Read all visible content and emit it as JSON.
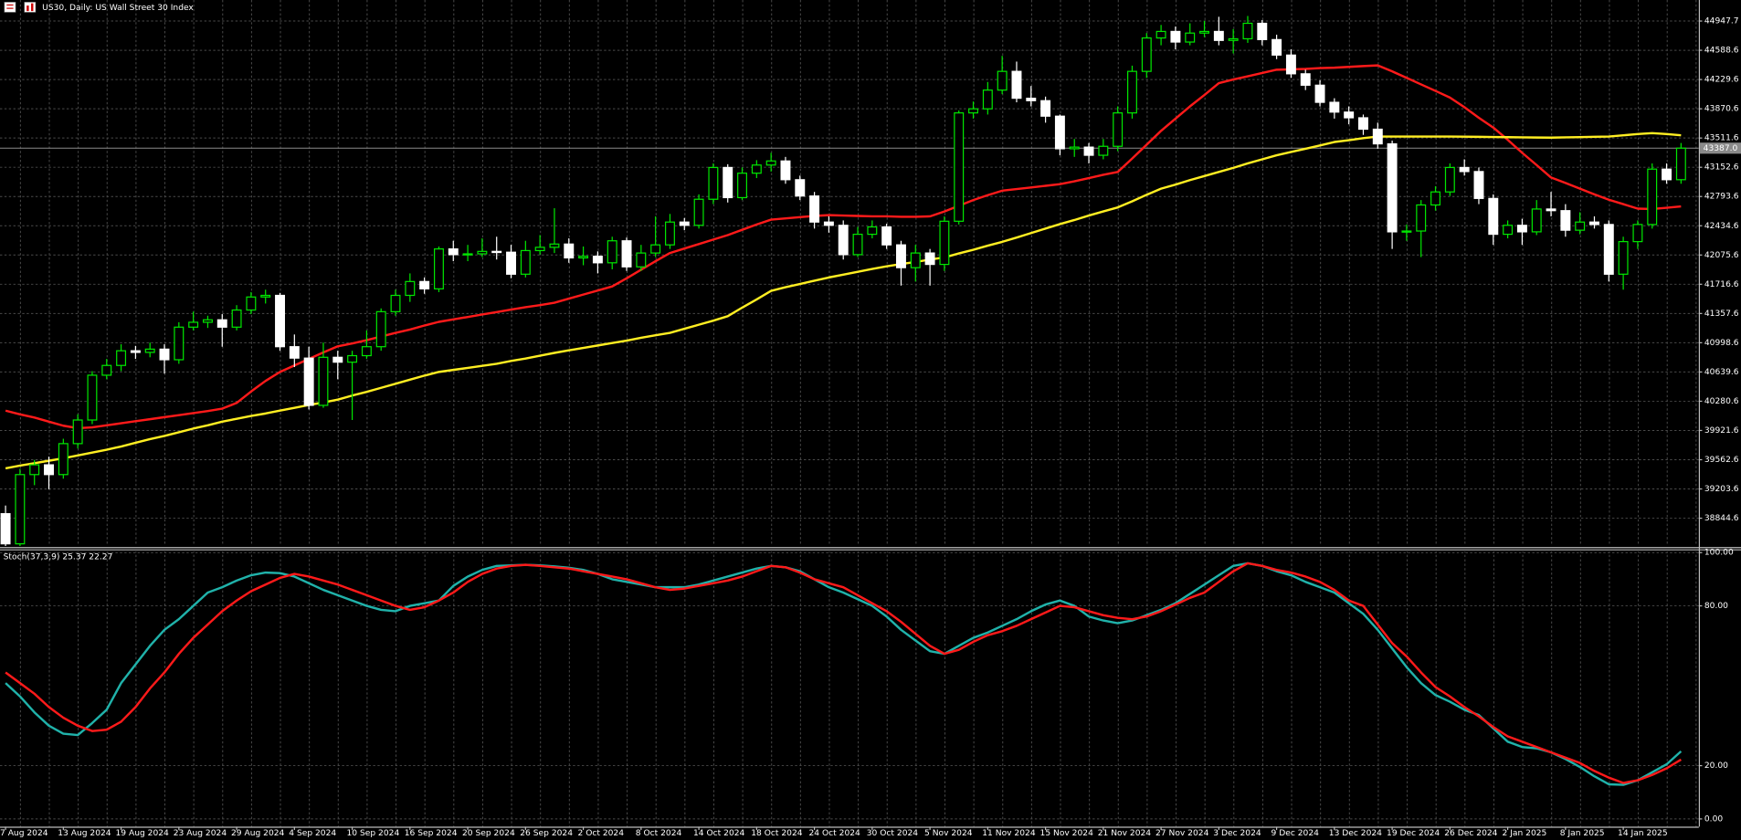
{
  "chart_data": [
    {
      "type": "candlestick",
      "title": "US30, Daily:  US Wall Street 30 Index",
      "up_color": "#00e600",
      "down_color": "#ffffff",
      "grid": true,
      "ylim": [
        38504,
        45206
      ],
      "yticks": [
        38844.6,
        39203.6,
        39562.6,
        39921.6,
        40280.6,
        40639.6,
        40998.6,
        41357.6,
        41716.6,
        42075.6,
        42434.6,
        42793.6,
        43152.6,
        43511.6,
        43870.6,
        44229.6,
        44588.6,
        44947.7
      ],
      "current_price": {
        "value": 43387,
        "label": "43387.0"
      },
      "open": [
        38900,
        38530,
        39380,
        39500,
        39380,
        39760,
        40050,
        40600,
        40720,
        40900,
        40880,
        40920,
        40790,
        41190,
        41250,
        41280,
        41190,
        41400,
        41560,
        41580,
        40950,
        40810,
        40230,
        40820,
        40760,
        40840,
        40950,
        41380,
        41580,
        41750,
        41660,
        42150,
        42080,
        42090,
        42120,
        42110,
        41840,
        42130,
        42170,
        42210,
        42040,
        42060,
        41980,
        42250,
        41930,
        42100,
        42200,
        42480,
        42440,
        42760,
        43150,
        42780,
        43080,
        43180,
        43230,
        43000,
        42800,
        42480,
        42440,
        42080,
        42330,
        42420,
        42200,
        41920,
        42100,
        41960,
        42490,
        43820,
        43870,
        44100,
        44330,
        44000,
        43970,
        43780,
        43380,
        43400,
        43300,
        43410,
        43820,
        44330,
        44740,
        44820,
        44690,
        44800,
        44820,
        44710,
        44730,
        44920,
        44720,
        44530,
        44300,
        44160,
        43950,
        43830,
        43760,
        43620,
        43440,
        42360,
        42370,
        42690,
        42850,
        43150,
        43100,
        42770,
        42330,
        42440,
        42360,
        42640,
        42620,
        42380,
        42480,
        42450,
        41840,
        42240,
        42450,
        43130,
        43000
      ],
      "high": [
        39000,
        39450,
        39560,
        39600,
        39820,
        40120,
        40650,
        40800,
        40980,
        40960,
        41000,
        40980,
        41250,
        41380,
        41330,
        41350,
        41460,
        41620,
        41650,
        41610,
        41100,
        40950,
        41000,
        40900,
        40900,
        41150,
        41420,
        41650,
        41850,
        41800,
        42180,
        42250,
        42200,
        42280,
        42300,
        42200,
        42250,
        42320,
        42650,
        42280,
        42180,
        42120,
        42300,
        42290,
        42200,
        42550,
        42580,
        42530,
        42820,
        43200,
        43190,
        43150,
        43240,
        43330,
        43280,
        43050,
        42850,
        42550,
        42500,
        42420,
        42500,
        42460,
        42250,
        42200,
        42150,
        42550,
        43850,
        43960,
        44200,
        44520,
        44450,
        44150,
        44020,
        43800,
        43500,
        43450,
        43500,
        43900,
        44400,
        44800,
        44900,
        44880,
        44920,
        44950,
        45000,
        44850,
        45010,
        44960,
        44780,
        44600,
        44350,
        44220,
        44000,
        43900,
        43800,
        43700,
        43480,
        42450,
        42750,
        42920,
        43200,
        43250,
        43150,
        42820,
        42500,
        42520,
        42750,
        42850,
        42700,
        42600,
        42550,
        42500,
        42300,
        42500,
        43200,
        43200,
        43450
      ],
      "low": [
        38470,
        38500,
        39250,
        39200,
        39330,
        39700,
        40000,
        40550,
        40650,
        40800,
        40820,
        40620,
        40740,
        41150,
        41180,
        40950,
        41150,
        41350,
        41480,
        40900,
        40700,
        40180,
        40200,
        40550,
        40050,
        40800,
        40900,
        41330,
        41500,
        41600,
        41620,
        42000,
        42000,
        42050,
        42020,
        41790,
        41800,
        42080,
        42100,
        41980,
        41950,
        41850,
        41900,
        41880,
        41880,
        42050,
        42150,
        42380,
        42400,
        42700,
        42720,
        42750,
        43020,
        43100,
        42950,
        42750,
        42400,
        42350,
        42020,
        42050,
        42280,
        42150,
        41700,
        41750,
        41700,
        41880,
        42450,
        43750,
        43800,
        44050,
        43950,
        43900,
        43700,
        43300,
        43280,
        43200,
        43250,
        43350,
        43750,
        44250,
        44650,
        44600,
        44650,
        44750,
        44650,
        44550,
        44680,
        44650,
        44480,
        44250,
        44100,
        43900,
        43750,
        43680,
        43550,
        43380,
        42150,
        42250,
        42050,
        42620,
        42800,
        43050,
        42700,
        42200,
        42280,
        42200,
        42320,
        42550,
        42300,
        42330,
        42400,
        41750,
        41650,
        42150,
        42400,
        42950,
        42950
      ],
      "close": [
        38530,
        39380,
        39500,
        39380,
        39760,
        40050,
        40600,
        40720,
        40900,
        40880,
        40920,
        40790,
        41190,
        41250,
        41280,
        41190,
        41400,
        41560,
        41580,
        40950,
        40810,
        40230,
        40820,
        40760,
        40840,
        40950,
        41380,
        41580,
        41750,
        41660,
        42150,
        42080,
        42090,
        42120,
        42110,
        41840,
        42130,
        42170,
        42210,
        42040,
        42060,
        41980,
        42250,
        41930,
        42100,
        42200,
        42480,
        42440,
        42760,
        43150,
        42780,
        43080,
        43180,
        43230,
        43000,
        42800,
        42480,
        42440,
        42080,
        42330,
        42420,
        42200,
        41920,
        42100,
        41960,
        42490,
        43820,
        43870,
        44100,
        44330,
        44000,
        43970,
        43780,
        43380,
        43400,
        43300,
        43410,
        43820,
        44330,
        44740,
        44820,
        44690,
        44800,
        44820,
        44710,
        44730,
        44920,
        44720,
        44530,
        44300,
        44160,
        43950,
        43830,
        43760,
        43620,
        43440,
        42360,
        42370,
        42690,
        42850,
        43150,
        43100,
        42770,
        42330,
        42440,
        42360,
        42640,
        42620,
        42380,
        42480,
        42450,
        41840,
        42240,
        42450,
        43130,
        43000,
        43387
      ],
      "series": [
        {
          "color": "#ff1a1a",
          "values": [
            40165,
            40120,
            40080,
            40030,
            39980,
            39950,
            39960,
            39985,
            40010,
            40035,
            40060,
            40085,
            40110,
            40135,
            40160,
            40190,
            40260,
            40400,
            40530,
            40640,
            40720,
            40800,
            40880,
            40955,
            40990,
            41030,
            41075,
            41120,
            41160,
            41210,
            41255,
            41285,
            41315,
            41345,
            41375,
            41405,
            41435,
            41460,
            41490,
            41540,
            41590,
            41640,
            41690,
            41790,
            41895,
            42000,
            42100,
            42155,
            42210,
            42265,
            42320,
            42385,
            42450,
            42510,
            42525,
            42540,
            42555,
            42565,
            42560,
            42555,
            42550,
            42550,
            42545,
            42545,
            42550,
            42610,
            42680,
            42750,
            42810,
            42865,
            42885,
            42905,
            42925,
            42945,
            42980,
            43020,
            43060,
            43095,
            43260,
            43430,
            43600,
            43750,
            43900,
            44040,
            44185,
            44230,
            44270,
            44310,
            44350,
            44355,
            44360,
            44370,
            44375,
            44385,
            44395,
            44403,
            44330,
            44250,
            44170,
            44090,
            44008,
            43890,
            43760,
            43640,
            43490,
            43330,
            43180,
            43027,
            42960,
            42890,
            42820,
            42754,
            42700,
            42645,
            42640,
            42655,
            42672
          ]
        },
        {
          "color": "#ffee22",
          "values": [
            39457,
            39490,
            39520,
            39550,
            39580,
            39615,
            39650,
            39685,
            39725,
            39770,
            39815,
            39855,
            39900,
            39945,
            39985,
            40030,
            40065,
            40100,
            40130,
            40165,
            40200,
            40235,
            40265,
            40300,
            40350,
            40395,
            40445,
            40495,
            40545,
            40595,
            40640,
            40665,
            40690,
            40715,
            40740,
            40775,
            40805,
            40840,
            40874,
            40905,
            40935,
            40965,
            40995,
            41025,
            41060,
            41090,
            41120,
            41170,
            41220,
            41270,
            41324,
            41430,
            41530,
            41635,
            41680,
            41720,
            41760,
            41800,
            41835,
            41870,
            41905,
            41937,
            41965,
            41990,
            42020,
            42046,
            42095,
            42140,
            42190,
            42237,
            42290,
            42345,
            42400,
            42455,
            42505,
            42560,
            42610,
            42660,
            42735,
            42815,
            42890,
            42940,
            42995,
            43045,
            43095,
            43145,
            43200,
            43250,
            43300,
            43340,
            43380,
            43420,
            43463,
            43485,
            43510,
            43530,
            43530,
            43530,
            43530,
            43530,
            43530,
            43528,
            43526,
            43524,
            43522,
            43520,
            43518,
            43516,
            43520,
            43523,
            43527,
            43530,
            43545,
            43560,
            43572,
            43560,
            43545
          ]
        }
      ]
    },
    {
      "type": "line",
      "title": "Stoch(37,3,9) 25.37 22.27",
      "grid": true,
      "ylim": [
        0,
        100
      ],
      "yticks": [
        {
          "value": 0,
          "label": "0.00"
        },
        {
          "value": 20,
          "label": "20.00"
        },
        {
          "value": 80,
          "label": "80.00"
        },
        {
          "value": 100,
          "label": "100.00"
        }
      ],
      "categories": [
        "7 Aug 2024",
        null,
        null,
        null,
        "13 Aug 2024",
        null,
        null,
        null,
        "19 Aug 2024",
        null,
        null,
        null,
        "23 Aug 2024",
        null,
        null,
        null,
        "29 Aug 2024",
        null,
        null,
        null,
        "4 Sep 2024",
        null,
        null,
        null,
        "10 Sep 2024",
        null,
        null,
        null,
        "16 Sep 2024",
        null,
        null,
        null,
        "20 Sep 2024",
        null,
        null,
        null,
        "26 Sep 2024",
        null,
        null,
        null,
        "2 Oct 2024",
        null,
        null,
        null,
        "8 Oct 2024",
        null,
        null,
        null,
        "14 Oct 2024",
        null,
        null,
        null,
        "18 Oct 2024",
        null,
        null,
        null,
        "24 Oct 2024",
        null,
        null,
        null,
        "30 Oct 2024",
        null,
        null,
        null,
        "5 Nov 2024",
        null,
        null,
        null,
        "11 Nov 2024",
        null,
        null,
        null,
        "15 Nov 2024",
        null,
        null,
        null,
        "21 Nov 2024",
        null,
        null,
        null,
        "27 Nov 2024",
        null,
        null,
        null,
        "3 Dec 2024",
        null,
        null,
        null,
        "9 Dec 2024",
        null,
        null,
        null,
        "13 Dec 2024",
        null,
        null,
        null,
        "19 Dec 2024",
        null,
        null,
        null,
        "26 Dec 2024",
        null,
        null,
        null,
        "2 Jan 2025",
        null,
        null,
        null,
        "8 Jan 2025",
        null,
        null,
        null,
        "14 Jan 2025",
        null,
        null,
        null,
        null
      ],
      "series": [
        {
          "color": "#20b2aa",
          "values": [
            51,
            46,
            40,
            35,
            32,
            31.5,
            36,
            41,
            51,
            58,
            65,
            71,
            75,
            80,
            85,
            87,
            89.5,
            91.5,
            92.5,
            92.3,
            91,
            88.5,
            86,
            84,
            82,
            80,
            78.5,
            78,
            80,
            81,
            82,
            87.5,
            91,
            93.5,
            95,
            95.2,
            95.4,
            95.2,
            94.8,
            94.3,
            93.5,
            92,
            90,
            89,
            88,
            87,
            87,
            87,
            88,
            89.5,
            91,
            92.5,
            94,
            95,
            94.5,
            93,
            90,
            87,
            85,
            82.5,
            80,
            76,
            71,
            67,
            63,
            62,
            65,
            68,
            70,
            72.5,
            75,
            78,
            80.5,
            82,
            80,
            76,
            74.5,
            73.5,
            74.5,
            76.5,
            78.5,
            81,
            84.5,
            88,
            91.5,
            95,
            96,
            95,
            93,
            91.5,
            89,
            87,
            85,
            81,
            77,
            71,
            64,
            57,
            51,
            46.5,
            44,
            41,
            39,
            34,
            29,
            27,
            26.5,
            25,
            22.5,
            19.5,
            16,
            13,
            12.8,
            14.5,
            17.5,
            20.5,
            25.37
          ]
        },
        {
          "color": "#ff1a1a",
          "values": [
            55,
            51,
            47,
            42,
            38,
            35,
            33,
            33.5,
            36.5,
            42,
            49,
            55,
            62,
            68,
            73,
            78,
            82,
            85.5,
            88,
            90.5,
            92,
            91,
            89.5,
            88,
            86,
            84,
            82,
            80,
            78.5,
            79.5,
            82,
            85,
            89,
            92,
            94,
            95,
            95.4,
            95,
            94.5,
            94,
            93,
            92,
            91,
            90,
            88.5,
            87,
            86,
            86.5,
            87.5,
            88.5,
            89.5,
            91,
            93,
            95,
            94.5,
            92.5,
            90,
            88.5,
            87,
            84,
            81,
            78,
            74,
            69.5,
            65,
            62,
            63.5,
            66.5,
            69,
            70.5,
            72.5,
            75,
            77.5,
            80,
            79.5,
            78,
            76.5,
            75.5,
            75,
            76,
            78,
            80.5,
            83,
            85,
            89,
            93,
            96,
            95,
            93.5,
            92.5,
            91,
            89,
            86,
            82,
            80,
            73,
            66,
            61,
            55,
            49.5,
            46,
            42,
            38.5,
            34.5,
            31,
            29,
            27,
            25,
            23,
            21,
            18,
            15.5,
            13.5,
            14.5,
            16.5,
            19,
            22.27
          ]
        }
      ]
    }
  ]
}
